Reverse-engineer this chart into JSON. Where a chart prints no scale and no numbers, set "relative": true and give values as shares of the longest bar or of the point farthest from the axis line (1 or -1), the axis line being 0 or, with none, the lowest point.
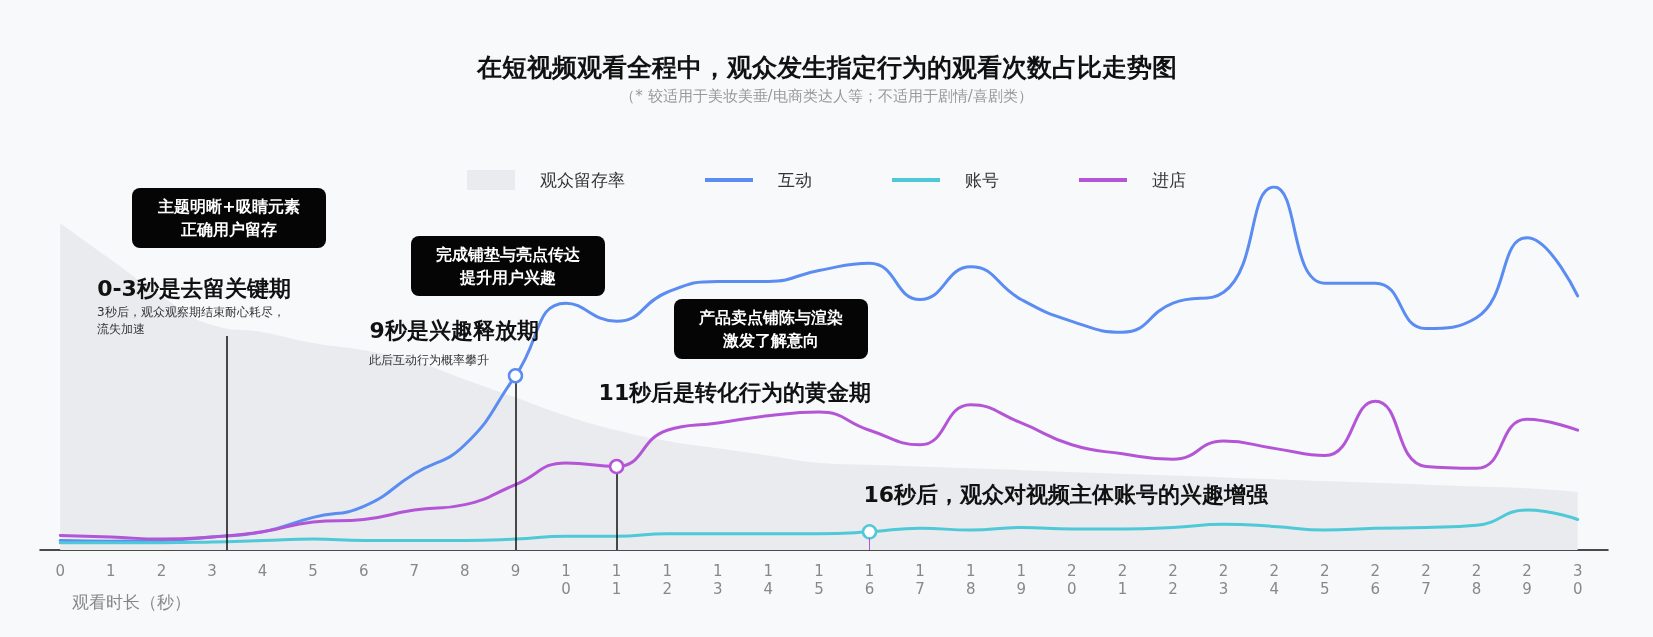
{
  "chart_data": {
    "type": "line",
    "title": "在短视频观看全程中，观众发生指定行为的观看次数占比走势图",
    "subtitle": "（* 较适用于美妆美垂/电商类达人等；不适用于剧情/喜剧类）",
    "xlabel": "观看时长（秒）",
    "relative": true,
    "x": [
      0,
      1,
      2,
      3,
      4,
      5,
      6,
      7,
      8,
      9,
      10,
      11,
      12,
      13,
      14,
      15,
      16,
      17,
      18,
      19,
      20,
      21,
      22,
      23,
      24,
      25,
      26,
      27,
      28,
      29,
      30
    ],
    "xlim": [
      -0.4,
      30.6
    ],
    "xticks": [
      0,
      1,
      2,
      3,
      4,
      5,
      6,
      7,
      8,
      9,
      10,
      11,
      12,
      13,
      14,
      15,
      16,
      17,
      18,
      19,
      20,
      21,
      22,
      23,
      24,
      25,
      26,
      27,
      28,
      29,
      30
    ],
    "series": [
      {
        "name": "观众留存率",
        "type": "area",
        "color": "#e9ebef",
        "values": [
          0.9,
          0.8,
          0.7,
          0.62,
          0.6,
          0.57,
          0.55,
          0.52,
          0.47,
          0.42,
          0.37,
          0.33,
          0.3,
          0.28,
          0.26,
          0.24,
          0.235,
          0.23,
          0.225,
          0.22,
          0.215,
          0.21,
          0.205,
          0.2,
          0.195,
          0.19,
          0.185,
          0.18,
          0.175,
          0.17,
          0.16
        ]
      },
      {
        "name": "互动",
        "color": "#5b8cf2",
        "values": [
          0.026,
          0.024,
          0.026,
          0.036,
          0.05,
          0.09,
          0.12,
          0.21,
          0.29,
          0.48,
          0.68,
          0.63,
          0.71,
          0.74,
          0.74,
          0.77,
          0.79,
          0.69,
          0.78,
          0.69,
          0.63,
          0.6,
          0.68,
          0.71,
          1,
          0.735,
          0.735,
          0.61,
          0.64,
          0.86,
          0.7
        ]
      },
      {
        "name": "账号",
        "color": "#4fc8d8",
        "values": [
          0.02,
          0.02,
          0.02,
          0.022,
          0.026,
          0.03,
          0.026,
          0.026,
          0.026,
          0.03,
          0.038,
          0.038,
          0.045,
          0.045,
          0.045,
          0.045,
          0.05,
          0.06,
          0.055,
          0.062,
          0.058,
          0.058,
          0.062,
          0.071,
          0.065,
          0.055,
          0.06,
          0.062,
          0.068,
          0.11,
          0.084
        ]
      },
      {
        "name": "进店",
        "color": "#b355d6",
        "values": [
          0.04,
          0.036,
          0.03,
          0.036,
          0.05,
          0.077,
          0.084,
          0.11,
          0.125,
          0.18,
          0.24,
          0.23,
          0.33,
          0.35,
          0.37,
          0.38,
          0.33,
          0.29,
          0.4,
          0.35,
          0.29,
          0.265,
          0.25,
          0.3,
          0.28,
          0.26,
          0.41,
          0.23,
          0.225,
          0.36,
          0.33
        ]
      }
    ],
    "annotations": [
      "主题明晰+吸睛元素正确用户留存",
      "3秒后，观众观察期结束耐心耗尽，流失加速",
      "完成铺垫与亮点传达提升用户兴趣",
      {
        "text": "9秒是兴趣释放期",
        "x": 9,
        "y": 0.48
      },
      "此后互动行为概率攀升",
      "产品卖点铺陈与渲染激发了解意向",
      {
        "text": "11秒后是转化行为的黄金期",
        "x": 11,
        "y": 0.23
      },
      {
        "text": "16秒后，观众对视频主体账号的兴趣增强",
        "x": 16,
        "y": 0.05
      }
    ],
    "ref_lines": [
      {
        "axis": "x",
        "value": 3.3,
        "color": "#111111",
        "label": "0-3秒是去留关键期"
      },
      {
        "axis": "x",
        "value": 9,
        "color": "#111111"
      },
      {
        "axis": "x",
        "value": 11,
        "color": "#111111"
      }
    ],
    "legend": "top",
    "marker": "none",
    "line_style": "solid",
    "grid": false
  }
}
